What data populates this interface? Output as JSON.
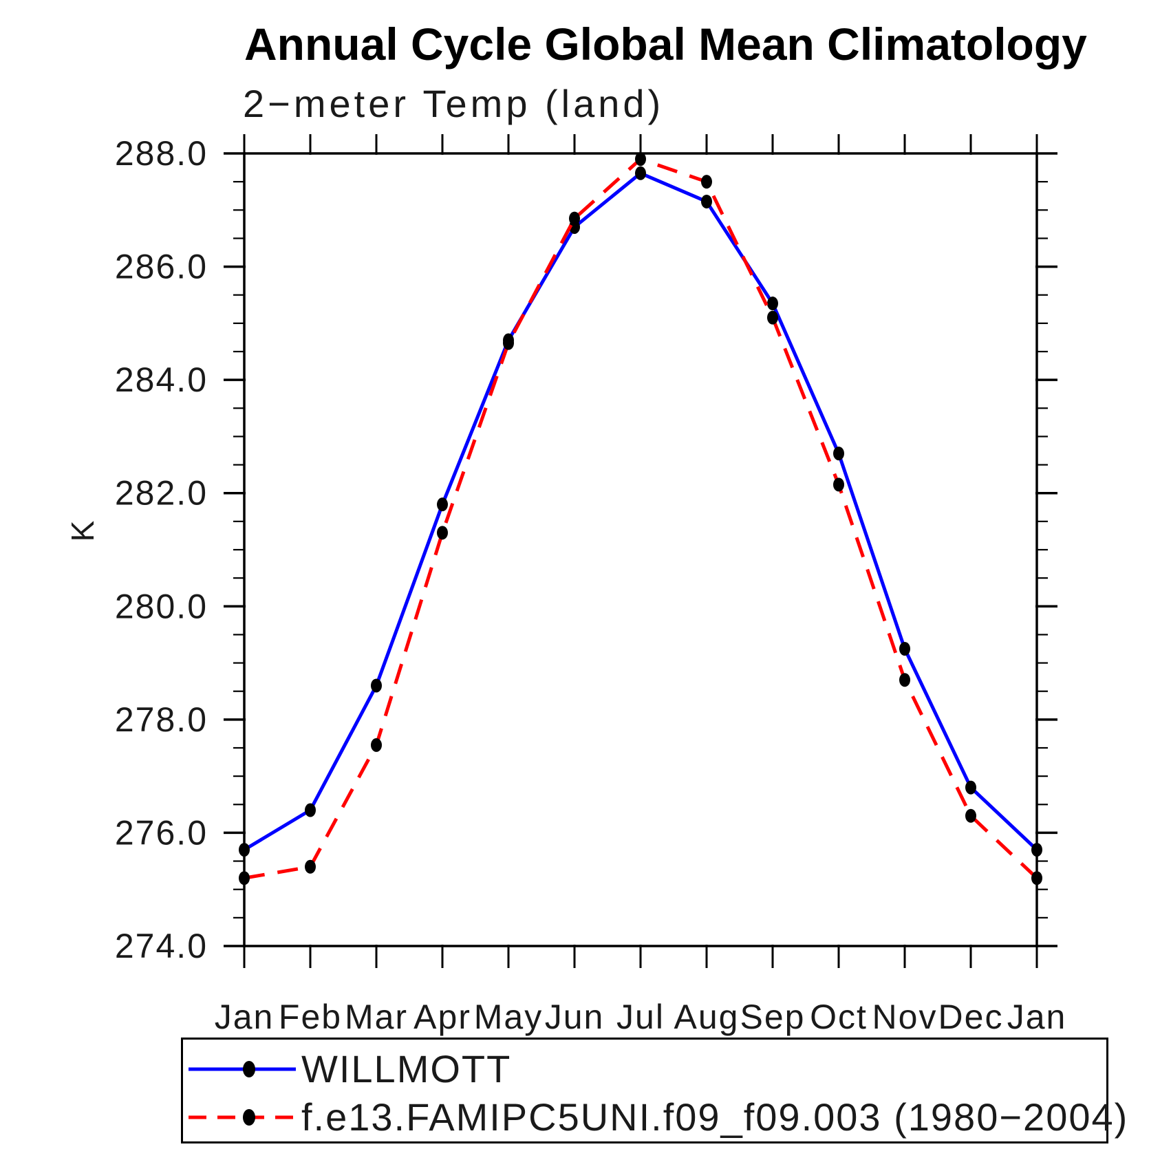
{
  "page": {
    "background": "#FFFFFF"
  },
  "chart_data": {
    "type": "line",
    "title": "Annual Cycle Global Mean Climatology",
    "subtitle": "2−meter Temp (land)",
    "ylabel": "K",
    "xlabel": "",
    "categories": [
      "Jan",
      "Feb",
      "Mar",
      "Apr",
      "May",
      "Jun",
      "Jul",
      "Aug",
      "Sep",
      "Oct",
      "Nov",
      "Dec",
      "Jan"
    ],
    "ylim": [
      274.0,
      288.0
    ],
    "ytick_major_step": 2.0,
    "ytick_minor_step": 0.5,
    "ytick_labels": [
      "274.0",
      "276.0",
      "278.0",
      "280.0",
      "282.0",
      "284.0",
      "286.0",
      "288.0"
    ],
    "grid": false,
    "frame_color": "#000000",
    "marker": {
      "shape": "filled-circle",
      "color": "#000000"
    },
    "series": [
      {
        "name": "WILLMOTT",
        "color": "#0000FF",
        "style": "solid",
        "values": [
          275.7,
          276.4,
          278.6,
          281.8,
          284.7,
          286.7,
          287.65,
          287.15,
          285.35,
          282.7,
          279.25,
          276.8,
          275.7
        ]
      },
      {
        "name": "f.e13.FAMIPC5UNI.f09_f09.003 (1980−2004)",
        "color": "#FF0000",
        "style": "dashed",
        "values": [
          275.2,
          275.4,
          277.55,
          281.3,
          284.65,
          286.85,
          287.9,
          287.5,
          285.1,
          282.15,
          278.7,
          276.3,
          275.2
        ]
      }
    ],
    "legend": {
      "position": "bottom-left",
      "border": true
    }
  }
}
